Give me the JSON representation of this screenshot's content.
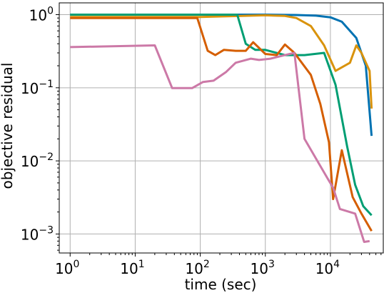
{
  "chart_data": {
    "type": "line",
    "xlabel": "time (sec)",
    "ylabel": "objective residual",
    "xscale": "log",
    "yscale": "log",
    "xlim": [
      0.68,
      65000
    ],
    "ylim": [
      0.00055,
      1.45
    ],
    "grid": true,
    "legend": "none",
    "xticks": [
      {
        "value": 1,
        "base": "10",
        "exp": "0"
      },
      {
        "value": 10,
        "base": "10",
        "exp": "1"
      },
      {
        "value": 100,
        "base": "10",
        "exp": "2"
      },
      {
        "value": 1000,
        "base": "10",
        "exp": "3"
      },
      {
        "value": 10000,
        "base": "10",
        "exp": "4"
      }
    ],
    "yticks": [
      {
        "value": 0.001,
        "base": "10",
        "exp": "−3"
      },
      {
        "value": 0.01,
        "base": "10",
        "exp": "−2"
      },
      {
        "value": 0.1,
        "base": "10",
        "exp": "−1"
      },
      {
        "value": 1,
        "base": "10",
        "exp": "0"
      }
    ],
    "series": [
      {
        "color": "#0072b2",
        "x": [
          1,
          100,
          1000,
          3000,
          6000,
          10000,
          15000,
          25000,
          35000,
          43000
        ],
        "y": [
          1.0,
          1.0,
          1.0,
          0.99,
          0.97,
          0.92,
          0.8,
          0.48,
          0.2,
          0.022
        ]
      },
      {
        "color": "#d9930d",
        "x": [
          1,
          100,
          1000,
          2000,
          3000,
          5000,
          8000,
          12000,
          20000,
          25000,
          30000,
          40000,
          43000
        ],
        "y": [
          0.93,
          0.93,
          0.98,
          0.96,
          0.9,
          0.7,
          0.38,
          0.17,
          0.22,
          0.38,
          0.3,
          0.17,
          0.052
        ]
      },
      {
        "color": "#009e73",
        "x": [
          1,
          100,
          370,
          500,
          700,
          1000,
          2000,
          4000,
          8000,
          12000,
          18000,
          24000,
          32000,
          43000
        ],
        "y": [
          1.0,
          1.0,
          1.0,
          0.4,
          0.33,
          0.33,
          0.28,
          0.28,
          0.3,
          0.11,
          0.016,
          0.0047,
          0.0024,
          0.0018
        ]
      },
      {
        "color": "#d55e00",
        "x": [
          1,
          90,
          130,
          170,
          230,
          350,
          500,
          650,
          1000,
          1500,
          2000,
          2800,
          5000,
          7000,
          9500,
          11000,
          15000,
          22000,
          30000,
          43000
        ],
        "y": [
          0.9,
          0.9,
          0.32,
          0.28,
          0.33,
          0.32,
          0.32,
          0.42,
          0.29,
          0.28,
          0.39,
          0.3,
          0.15,
          0.06,
          0.018,
          0.003,
          0.014,
          0.0032,
          0.0019,
          0.0011
        ]
      },
      {
        "color": "#cc79a7",
        "x": [
          1,
          20,
          37,
          75,
          110,
          160,
          250,
          350,
          600,
          800,
          1200,
          2000,
          2800,
          4000,
          9000,
          11000,
          14000,
          24000,
          33000,
          40000
        ],
        "y": [
          0.36,
          0.38,
          0.099,
          0.099,
          0.12,
          0.125,
          0.165,
          0.22,
          0.25,
          0.24,
          0.25,
          0.28,
          0.3,
          0.02,
          0.0058,
          0.0043,
          0.0022,
          0.0019,
          0.00078,
          0.0008
        ]
      }
    ]
  }
}
